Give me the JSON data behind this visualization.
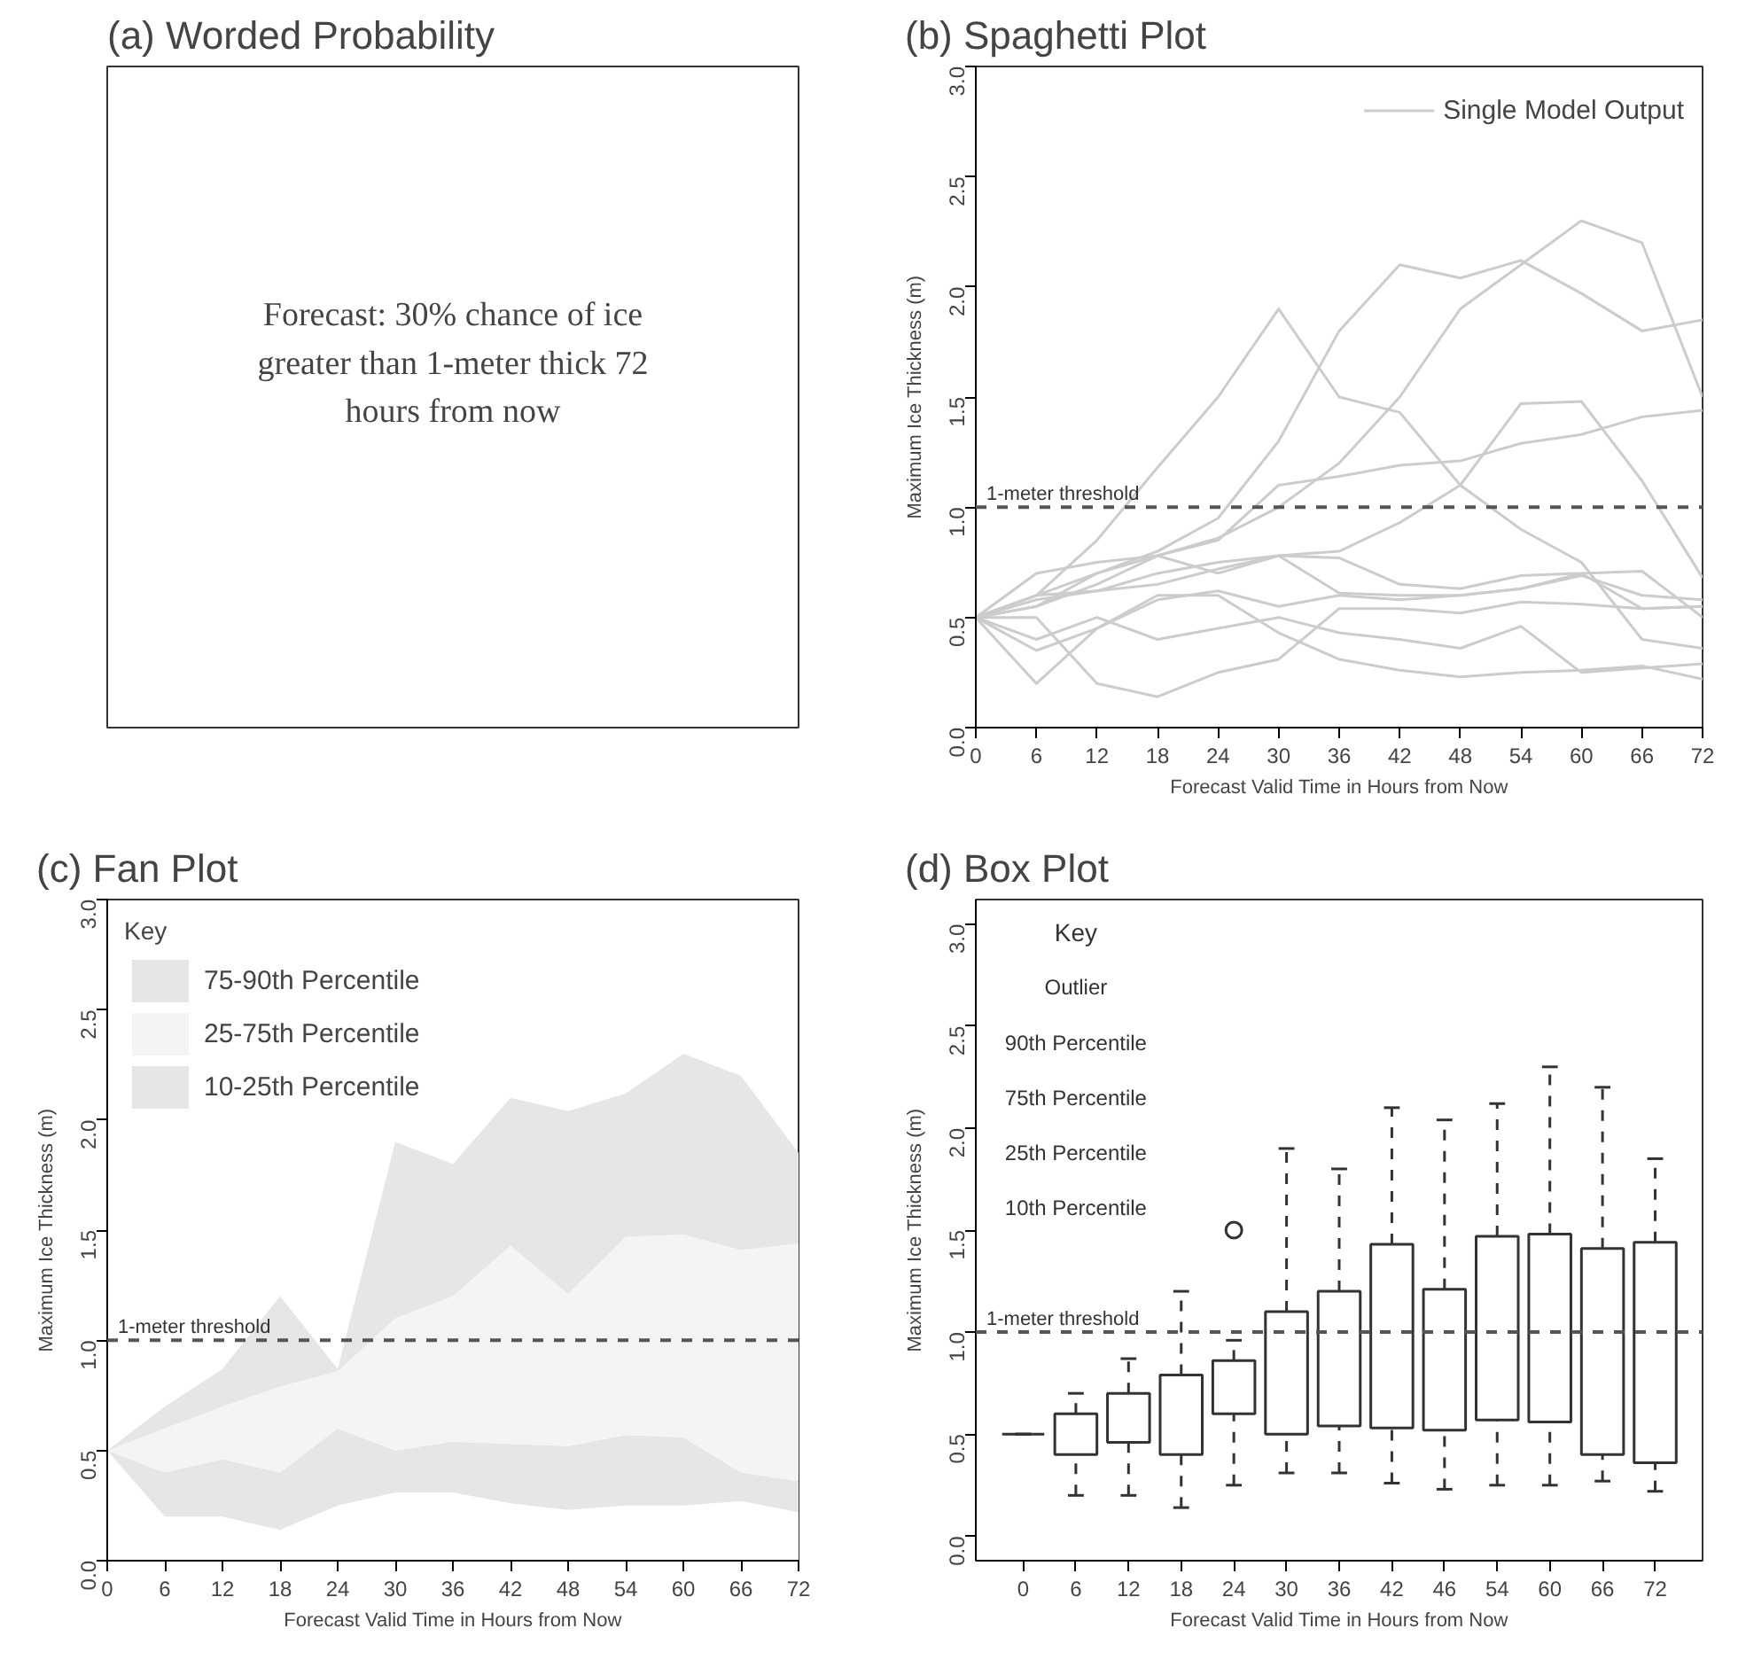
{
  "chart_data": [
    {
      "type": "other",
      "title": "(a) Worded Probability",
      "annotations": [
        "Forecast: 30% chance of ice greater than 1-meter thick 72 hours from now"
      ]
    },
    {
      "type": "line",
      "title": "(b) Spaghetti Plot",
      "xlabel": "Forecast Valid Time in Hours from Now",
      "ylabel": "Maximum Ice Thickness (m)",
      "x": [
        0,
        6,
        12,
        18,
        24,
        30,
        36,
        42,
        48,
        54,
        60,
        66,
        72
      ],
      "xlim": [
        0,
        72
      ],
      "xticks": [
        0,
        6,
        12,
        18,
        24,
        30,
        36,
        42,
        48,
        54,
        60,
        66,
        72
      ],
      "ylim": [
        0,
        3
      ],
      "yticks": [
        {
          "value": 0,
          "label": "0.0"
        },
        {
          "value": 0.5,
          "label": "0.5"
        },
        {
          "value": 1,
          "label": "1.0"
        },
        {
          "value": 1.5,
          "label": "1.5"
        },
        {
          "value": 2,
          "label": "2.0"
        },
        {
          "value": 2.5,
          "label": "2.5"
        },
        {
          "value": 3,
          "label": "3.0"
        }
      ],
      "legend": "top right",
      "grid": false,
      "ref_lines": [
        {
          "axis": "y",
          "value": 1,
          "label": "1-meter threshold",
          "color": "#555555",
          "line_style": "dashed"
        }
      ],
      "series": [
        {
          "name": "Single Model Output",
          "color": "#cccccc",
          "values": [
            0.5,
            0.6,
            0.85,
            1.18,
            1.5,
            1.9,
            1.5,
            1.43,
            1.1,
            0.9,
            0.75,
            0.4,
            0.36
          ]
        },
        {
          "color": "#cccccc",
          "values": [
            0.5,
            0.55,
            0.7,
            0.8,
            0.95,
            1.3,
            1.8,
            2.1,
            2.04,
            2.12,
            1.97,
            1.8,
            1.85
          ]
        },
        {
          "color": "#cccccc",
          "values": [
            0.5,
            0.55,
            0.65,
            0.78,
            0.86,
            1.0,
            1.2,
            1.5,
            1.9,
            2.1,
            2.3,
            2.2,
            1.5
          ]
        },
        {
          "color": "#cccccc",
          "values": [
            0.5,
            0.58,
            0.62,
            0.7,
            0.75,
            0.78,
            0.8,
            0.93,
            1.1,
            1.47,
            1.48,
            1.12,
            0.68
          ]
        },
        {
          "color": "#cccccc",
          "values": [
            0.5,
            0.6,
            0.7,
            0.78,
            0.85,
            1.1,
            1.14,
            1.19,
            1.21,
            1.29,
            1.33,
            1.41,
            1.44
          ]
        },
        {
          "color": "#cccccc",
          "values": [
            0.5,
            0.7,
            0.75,
            0.78,
            0.7,
            0.78,
            0.77,
            0.65,
            0.63,
            0.69,
            0.7,
            0.71,
            0.5
          ]
        },
        {
          "color": "#cccccc",
          "values": [
            0.5,
            0.6,
            0.62,
            0.65,
            0.72,
            0.78,
            0.61,
            0.6,
            0.6,
            0.63,
            0.69,
            0.6,
            0.58
          ]
        },
        {
          "color": "#cccccc",
          "values": [
            0.5,
            0.4,
            0.5,
            0.4,
            0.45,
            0.5,
            0.43,
            0.4,
            0.36,
            0.46,
            0.25,
            0.27,
            0.29
          ]
        },
        {
          "color": "#cccccc",
          "values": [
            0.5,
            0.2,
            0.45,
            0.58,
            0.62,
            0.55,
            0.6,
            0.58,
            0.6,
            0.63,
            0.7,
            0.54,
            0.55
          ]
        },
        {
          "color": "#cccccc",
          "values": [
            0.5,
            0.35,
            0.45,
            0.6,
            0.6,
            0.43,
            0.31,
            0.26,
            0.23,
            0.25,
            0.26,
            0.28,
            0.22
          ]
        },
        {
          "color": "#cccccc",
          "values": [
            0.5,
            0.5,
            0.2,
            0.14,
            0.25,
            0.31,
            0.54,
            0.54,
            0.52,
            0.57,
            0.56,
            0.54,
            0.55
          ]
        }
      ]
    },
    {
      "type": "area",
      "title": "(c) Fan Plot",
      "xlabel": "Forecast Valid Time in Hours from Now",
      "ylabel": "Maximum Ice Thickness (m)",
      "x": [
        0,
        6,
        12,
        18,
        24,
        30,
        36,
        42,
        48,
        54,
        60,
        66,
        72
      ],
      "xlim": [
        0,
        72
      ],
      "xticks": [
        0,
        6,
        12,
        18,
        24,
        30,
        36,
        42,
        48,
        54,
        60,
        66,
        72
      ],
      "ylim": [
        0,
        3
      ],
      "yticks": [
        {
          "value": 0,
          "label": "0.0"
        },
        {
          "value": 0.5,
          "label": "0.5"
        },
        {
          "value": 1,
          "label": "1.0"
        },
        {
          "value": 1.5,
          "label": "1.5"
        },
        {
          "value": 2,
          "label": "2.0"
        },
        {
          "value": 2.5,
          "label": "2.5"
        },
        {
          "value": 3,
          "label": "3.0"
        }
      ],
      "legend": "top left",
      "legend_title": "Key",
      "grid": false,
      "stacked": true,
      "ref_lines": [
        {
          "axis": "y",
          "value": 1,
          "label": "1-meter threshold",
          "color": "#555555",
          "line_style": "dashed"
        }
      ],
      "series": [
        {
          "color": "#ffffff",
          "values": [
            0.5,
            0.2,
            0.2,
            0.14,
            0.25,
            0.31,
            0.31,
            0.26,
            0.23,
            0.25,
            0.25,
            0.27,
            0.22
          ]
        },
        {
          "name": "10-25th Percentile",
          "color": "#e6e6e6",
          "values": [
            0,
            0.2,
            0.26,
            0.26,
            0.35,
            0.19,
            0.23,
            0.27,
            0.29,
            0.32,
            0.31,
            0.13,
            0.14
          ]
        },
        {
          "name": "25-75th Percentile",
          "color": "#f4f4f4",
          "values": [
            0,
            0.2,
            0.24,
            0.39,
            0.26,
            0.6,
            0.66,
            0.9,
            0.69,
            0.9,
            0.92,
            1.01,
            1.08
          ]
        },
        {
          "name": "75-90th Percentile",
          "color": "#e6e6e6",
          "values": [
            0,
            0.1,
            0.17,
            0.41,
            0.01,
            0.8,
            0.6,
            0.67,
            0.83,
            0.65,
            0.82,
            0.79,
            0.41
          ]
        }
      ]
    },
    {
      "type": "box",
      "title": "(d) Box Plot",
      "xlabel": "Forecast Valid Time in Hours from Now",
      "ylabel": "Maximum Ice Thickness (m)",
      "categories": [
        "0",
        "6",
        "12",
        "18",
        "24",
        "30",
        "36",
        "42",
        "46",
        "54",
        "60",
        "66",
        "72"
      ],
      "ylim": [
        -0.12,
        3.12
      ],
      "yticks": [
        {
          "value": 0,
          "label": "0.0"
        },
        {
          "value": 0.5,
          "label": "0.5"
        },
        {
          "value": 1,
          "label": "1.0"
        },
        {
          "value": 1.5,
          "label": "1.5"
        },
        {
          "value": 2,
          "label": "2.0"
        },
        {
          "value": 2.5,
          "label": "2.5"
        },
        {
          "value": 3,
          "label": "3.0"
        }
      ],
      "grid": false,
      "ref_lines": [
        {
          "axis": "y",
          "value": 1,
          "label": "1-meter threshold",
          "color": "#555555",
          "line_style": "dashed"
        }
      ],
      "annotations": [
        "Key",
        "Outlier",
        "90th Percentile",
        "75th Percentile",
        "25th Percentile",
        "10th Percentile"
      ],
      "boxes": [
        {
          "low": 0.5,
          "q1": 0.5,
          "q3": 0.5,
          "high": 0.5
        },
        {
          "low": 0.2,
          "q1": 0.4,
          "q3": 0.6,
          "high": 0.7
        },
        {
          "low": 0.2,
          "q1": 0.46,
          "q3": 0.7,
          "high": 0.87
        },
        {
          "low": 0.14,
          "q1": 0.4,
          "q3": 0.79,
          "high": 1.2
        },
        {
          "low": 0.25,
          "q1": 0.6,
          "q3": 0.86,
          "high": 0.96,
          "outliers": [
            1.5
          ]
        },
        {
          "low": 0.31,
          "q1": 0.5,
          "q3": 1.1,
          "high": 1.9
        },
        {
          "low": 0.31,
          "q1": 0.54,
          "q3": 1.2,
          "high": 1.8
        },
        {
          "low": 0.26,
          "q1": 0.53,
          "q3": 1.43,
          "high": 2.1
        },
        {
          "low": 0.23,
          "q1": 0.52,
          "q3": 1.21,
          "high": 2.04
        },
        {
          "low": 0.25,
          "q1": 0.57,
          "q3": 1.47,
          "high": 2.12
        },
        {
          "low": 0.25,
          "q1": 0.56,
          "q3": 1.48,
          "high": 2.3
        },
        {
          "low": 0.27,
          "q1": 0.4,
          "q3": 1.41,
          "high": 2.2
        },
        {
          "low": 0.22,
          "q1": 0.36,
          "q3": 1.44,
          "high": 1.85
        }
      ]
    }
  ]
}
